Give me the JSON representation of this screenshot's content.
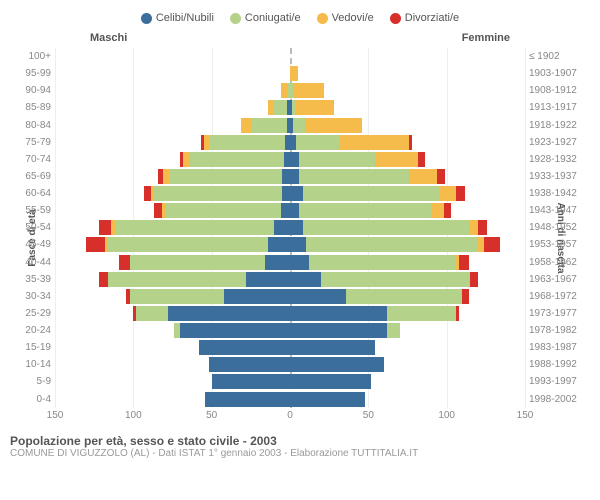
{
  "legend": [
    {
      "label": "Celibi/Nubili",
      "color": "#3b6e9a"
    },
    {
      "label": "Coniugati/e",
      "color": "#b5d28a"
    },
    {
      "label": "Vedovi/e",
      "color": "#f5bb4b"
    },
    {
      "label": "Divorziati/e",
      "color": "#d72f2a"
    }
  ],
  "header_left": "Maschi",
  "header_right": "Femmine",
  "ylab_left": "Fasce di età",
  "ylab_right": "Anni di nascita",
  "xlim": 150,
  "xticks": [
    150,
    100,
    50,
    0,
    50,
    100,
    150
  ],
  "title": "Popolazione per età, sesso e stato civile - 2003",
  "subtitle": "COMUNE DI VIGUZZOLO (AL) - Dati ISTAT 1° gennaio 2003 - Elaborazione TUTTITALIA.IT",
  "rows": [
    {
      "age": "100+",
      "year": "≤ 1902",
      "m": [
        0,
        0,
        0,
        0
      ],
      "f": [
        0,
        0,
        0,
        0
      ]
    },
    {
      "age": "95-99",
      "year": "1903-1907",
      "m": [
        0,
        0,
        0,
        0
      ],
      "f": [
        0,
        0,
        5,
        0
      ]
    },
    {
      "age": "90-94",
      "year": "1908-1912",
      "m": [
        0,
        2,
        4,
        0
      ],
      "f": [
        0,
        2,
        20,
        0
      ]
    },
    {
      "age": "85-89",
      "year": "1913-1917",
      "m": [
        2,
        8,
        4,
        0
      ],
      "f": [
        1,
        3,
        24,
        0
      ]
    },
    {
      "age": "80-84",
      "year": "1918-1922",
      "m": [
        2,
        23,
        6,
        0
      ],
      "f": [
        2,
        8,
        36,
        0
      ]
    },
    {
      "age": "75-79",
      "year": "1923-1927",
      "m": [
        3,
        48,
        4,
        2
      ],
      "f": [
        4,
        28,
        44,
        2
      ]
    },
    {
      "age": "70-74",
      "year": "1928-1932",
      "m": [
        4,
        60,
        4,
        2
      ],
      "f": [
        6,
        48,
        28,
        4
      ]
    },
    {
      "age": "65-69",
      "year": "1933-1937",
      "m": [
        5,
        72,
        4,
        3
      ],
      "f": [
        6,
        70,
        18,
        5
      ]
    },
    {
      "age": "60-64",
      "year": "1938-1942",
      "m": [
        5,
        82,
        2,
        4
      ],
      "f": [
        8,
        88,
        10,
        6
      ]
    },
    {
      "age": "55-59",
      "year": "1943-1947",
      "m": [
        6,
        74,
        2,
        5
      ],
      "f": [
        6,
        84,
        8,
        5
      ]
    },
    {
      "age": "50-54",
      "year": "1948-1952",
      "m": [
        10,
        102,
        2,
        8
      ],
      "f": [
        8,
        106,
        6,
        6
      ]
    },
    {
      "age": "45-49",
      "year": "1953-1957",
      "m": [
        14,
        102,
        2,
        12
      ],
      "f": [
        10,
        110,
        4,
        10
      ]
    },
    {
      "age": "40-44",
      "year": "1958-1962",
      "m": [
        16,
        86,
        0,
        7
      ],
      "f": [
        12,
        94,
        2,
        6
      ]
    },
    {
      "age": "35-39",
      "year": "1963-1967",
      "m": [
        28,
        88,
        0,
        6
      ],
      "f": [
        20,
        94,
        1,
        5
      ]
    },
    {
      "age": "30-34",
      "year": "1968-1972",
      "m": [
        42,
        60,
        0,
        3
      ],
      "f": [
        36,
        74,
        0,
        4
      ]
    },
    {
      "age": "25-29",
      "year": "1973-1977",
      "m": [
        78,
        20,
        0,
        2
      ],
      "f": [
        62,
        44,
        0,
        2
      ]
    },
    {
      "age": "20-24",
      "year": "1978-1982",
      "m": [
        70,
        4,
        0,
        0
      ],
      "f": [
        62,
        8,
        0,
        0
      ]
    },
    {
      "age": "15-19",
      "year": "1983-1987",
      "m": [
        58,
        0,
        0,
        0
      ],
      "f": [
        54,
        0,
        0,
        0
      ]
    },
    {
      "age": "10-14",
      "year": "1988-1992",
      "m": [
        52,
        0,
        0,
        0
      ],
      "f": [
        60,
        0,
        0,
        0
      ]
    },
    {
      "age": "5-9",
      "year": "1993-1997",
      "m": [
        50,
        0,
        0,
        0
      ],
      "f": [
        52,
        0,
        0,
        0
      ]
    },
    {
      "age": "0-4",
      "year": "1998-2002",
      "m": [
        54,
        0,
        0,
        0
      ],
      "f": [
        48,
        0,
        0,
        0
      ]
    }
  ],
  "grid_color": "#eee",
  "bg": "#ffffff"
}
